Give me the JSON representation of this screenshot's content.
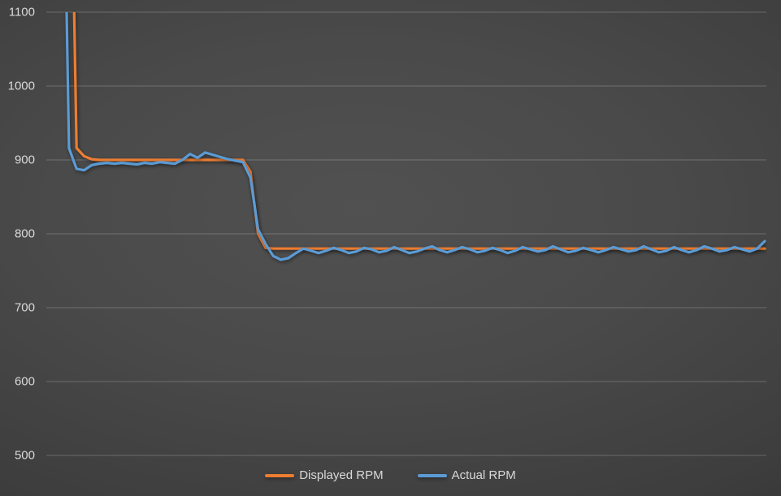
{
  "chart_data": {
    "type": "line",
    "title": "",
    "xlabel": "",
    "ylabel": "",
    "ylim": [
      500,
      1100
    ],
    "yticks": [
      1100,
      1000,
      900,
      800,
      700,
      600,
      500
    ],
    "grid": true,
    "legend_position": "bottom-center",
    "colors": {
      "gridline": "rgba(255,255,255,0.22)",
      "tick_label": "#d9d9d9",
      "background_center": "#4f4f4f",
      "background_edge": "#242424"
    },
    "series": [
      {
        "name": "Displayed RPM",
        "color": "#ED7D31",
        "values": [
          1650,
          1600,
          1550,
          1500,
          916,
          905,
          901,
          900,
          900,
          900,
          900,
          900,
          900,
          900,
          900,
          900,
          900,
          900,
          900,
          900,
          900,
          900,
          900,
          900,
          900,
          900,
          900,
          884,
          800,
          781,
          780,
          780,
          780,
          780,
          780,
          780,
          780,
          780,
          780,
          780,
          780,
          780,
          780,
          780,
          780,
          780,
          780,
          780,
          780,
          780,
          780,
          780,
          780,
          780,
          780,
          780,
          780,
          780,
          780,
          780,
          780,
          780,
          780,
          780,
          780,
          780,
          780,
          780,
          780,
          780,
          780,
          780,
          780,
          780,
          780,
          780,
          780,
          780,
          780,
          780,
          780,
          780,
          780,
          780,
          780,
          780,
          780,
          780,
          780,
          780,
          780,
          780,
          780,
          780,
          780,
          780
        ]
      },
      {
        "name": "Actual RPM",
        "color": "#5B9BD5",
        "values": [
          1600,
          1550,
          1500,
          916,
          888,
          886,
          893,
          895,
          896,
          895,
          896,
          895,
          894,
          896,
          895,
          897,
          896,
          895,
          900,
          908,
          903,
          910,
          907,
          904,
          901,
          899,
          897,
          876,
          806,
          786,
          770,
          765,
          767,
          774,
          780,
          777,
          774,
          777,
          781,
          778,
          774,
          776,
          781,
          779,
          775,
          777,
          782,
          778,
          774,
          776,
          780,
          783,
          778,
          775,
          778,
          782,
          779,
          775,
          777,
          781,
          778,
          774,
          777,
          782,
          779,
          776,
          778,
          783,
          779,
          775,
          777,
          781,
          778,
          775,
          778,
          782,
          779,
          776,
          778,
          783,
          779,
          775,
          777,
          782,
          778,
          775,
          778,
          783,
          780,
          776,
          778,
          782,
          779,
          776,
          780,
          790
        ]
      }
    ]
  }
}
